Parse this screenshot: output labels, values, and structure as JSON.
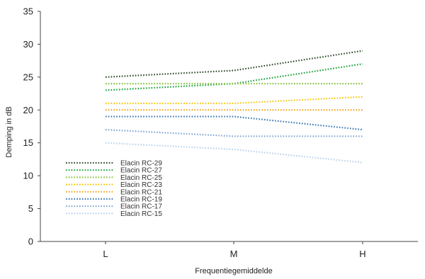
{
  "chart_data": {
    "type": "line",
    "title": "",
    "xlabel": "Frequentiegemiddelde",
    "ylabel": "Demping in dB",
    "categories": [
      "L",
      "M",
      "H"
    ],
    "ylim": [
      0,
      35
    ],
    "yticks": [
      0,
      5,
      10,
      15,
      20,
      25,
      30,
      35
    ],
    "grid": false,
    "legend_position": "bottom-left",
    "line_style": "dotted",
    "series": [
      {
        "name": "Elacin RC-29",
        "color": "#2e4d2a",
        "values": [
          25,
          26,
          29
        ]
      },
      {
        "name": "Elacin RC-27",
        "color": "#1aa33a",
        "values": [
          23,
          24,
          27
        ]
      },
      {
        "name": "Elacin RC-25",
        "color": "#86c341",
        "values": [
          24,
          24,
          24
        ]
      },
      {
        "name": "Elacin RC-23",
        "color": "#f5c400",
        "values": [
          21,
          21,
          22
        ]
      },
      {
        "name": "Elacin RC-21",
        "color": "#f5a623",
        "values": [
          20,
          20,
          20
        ]
      },
      {
        "name": "Elacin RC-19",
        "color": "#3b78b5",
        "values": [
          19,
          19,
          17
        ]
      },
      {
        "name": "Elacin RC-17",
        "color": "#7fa7d1",
        "values": [
          17,
          16,
          16
        ]
      },
      {
        "name": "Elacin RC-15",
        "color": "#b9d3ec",
        "values": [
          15,
          14,
          12
        ]
      }
    ]
  }
}
